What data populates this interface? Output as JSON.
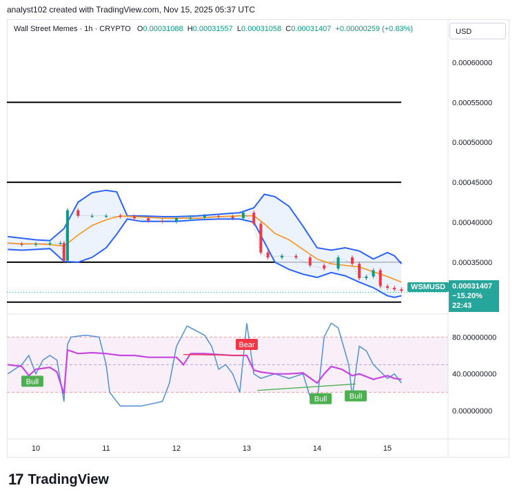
{
  "caption": "analyst102 created with TradingView.com, Nov 15, 2025 05:37 UTC",
  "header": {
    "symbol": "Wall Street Memes · 1h · CRYPTO",
    "open_label": "O",
    "open": "0.00031088",
    "high_label": "H",
    "high": "0.00031557",
    "low_label": "L",
    "low": "0.00031058",
    "close_label": "C",
    "close": "0.00031407",
    "change": "+0.00000259 (+0.83%)"
  },
  "currency_button": "USD",
  "last_price": {
    "symbol_tag": "WSMUSD",
    "price": "0.00031407",
    "change_pct": "−15.20%",
    "countdown": "22:43"
  },
  "brand": {
    "icon": "17",
    "name": "TradingView"
  },
  "colors": {
    "up": "#089981",
    "down": "#f23645",
    "band": "#2962ff",
    "band_fill": "#e8f0fb",
    "basis": "#f7931a",
    "rsi": "#c545e0",
    "stoch": "#4f8fd6",
    "bull": "#4caf50",
    "bear": "#f23645"
  },
  "chart_data": [
    {
      "type": "line",
      "description_series": "price with Bollinger Bands",
      "x_axis_ticks": [
        "10",
        "11",
        "12",
        "13",
        "14",
        "15"
      ],
      "y_axis_ticks": [
        "0.00060000",
        "0.00055000",
        "0.00050000",
        "0.00045000",
        "0.00040000",
        "0.00035000"
      ],
      "ylim": [
        0.000305,
        0.000615
      ],
      "horizontal_levels": [
        0.00055,
        0.00045,
        0.00035,
        0.0003
      ],
      "series": [
        {
          "key": "price",
          "x": [
            9.6,
            9.8,
            10.0,
            10.2,
            10.35,
            10.4,
            10.45,
            10.6,
            10.8,
            11.0,
            11.2,
            11.4,
            11.6,
            11.8,
            12.0,
            12.2,
            12.4,
            12.6,
            12.8,
            12.95,
            13.1,
            13.2,
            13.3,
            13.5,
            13.7,
            13.9,
            14.1,
            14.3,
            14.5,
            14.6,
            14.7,
            14.8,
            14.9,
            15.0,
            15.1,
            15.2
          ],
          "y": [
            0.000373,
            0.000372,
            0.000373,
            0.000374,
            0.000374,
            0.000352,
            0.000415,
            0.000408,
            0.000408,
            0.000408,
            0.000407,
            0.000405,
            0.000402,
            0.000401,
            0.000405,
            0.000406,
            0.000408,
            0.000407,
            0.000405,
            0.000412,
            0.000398,
            0.000362,
            0.000356,
            0.000358,
            0.000356,
            0.000346,
            0.000342,
            0.000356,
            0.000348,
            0.00033,
            0.000332,
            0.00034,
            0.00032,
            0.000318,
            0.000316,
            0.000314
          ]
        },
        {
          "key": "upper_band",
          "x": [
            9.6,
            9.8,
            10.0,
            10.2,
            10.4,
            10.6,
            10.8,
            11.0,
            11.15,
            11.3,
            11.5,
            11.8,
            12.0,
            12.3,
            12.6,
            12.9,
            13.1,
            13.25,
            13.4,
            13.6,
            13.8,
            14.0,
            14.2,
            14.4,
            14.6,
            14.8,
            15.0,
            15.1,
            15.2
          ],
          "y": [
            0.000382,
            0.00038,
            0.000378,
            0.000377,
            0.000392,
            0.000425,
            0.000437,
            0.00044,
            0.000438,
            0.000408,
            0.000408,
            0.000407,
            0.000407,
            0.000408,
            0.00041,
            0.000412,
            0.000418,
            0.000435,
            0.000432,
            0.00042,
            0.000395,
            0.000368,
            0.000365,
            0.000368,
            0.000364,
            0.000354,
            0.000362,
            0.000358,
            0.000348
          ]
        },
        {
          "key": "lower_band",
          "x": [
            9.6,
            9.8,
            10.0,
            10.2,
            10.4,
            10.6,
            10.8,
            11.0,
            11.15,
            11.3,
            11.5,
            11.8,
            12.0,
            12.3,
            12.6,
            12.9,
            13.1,
            13.25,
            13.4,
            13.6,
            13.8,
            14.0,
            14.2,
            14.4,
            14.6,
            14.8,
            15.0,
            15.1,
            15.2
          ],
          "y": [
            0.000366,
            0.000365,
            0.000366,
            0.000367,
            0.000351,
            0.00035,
            0.000356,
            0.000368,
            0.000385,
            0.000404,
            0.000401,
            0.000401,
            0.000401,
            0.000403,
            0.000404,
            0.000404,
            0.0004,
            0.000375,
            0.00035,
            0.000341,
            0.000335,
            0.000331,
            0.000337,
            0.000333,
            0.000325,
            0.000318,
            0.000308,
            0.000306,
            0.000308
          ]
        },
        {
          "key": "basis",
          "x": [
            9.6,
            9.8,
            10.0,
            10.2,
            10.4,
            10.6,
            10.8,
            11.0,
            11.2,
            11.4,
            11.6,
            11.8,
            12.0,
            12.3,
            12.6,
            12.9,
            13.1,
            13.25,
            13.4,
            13.6,
            13.8,
            14.0,
            14.2,
            14.4,
            14.6,
            14.8,
            15.0,
            15.2
          ],
          "y": [
            0.000374,
            0.000373,
            0.000373,
            0.000372,
            0.00037,
            0.000384,
            0.000396,
            0.000403,
            0.000408,
            0.000407,
            0.000406,
            0.000405,
            0.000405,
            0.000405,
            0.000407,
            0.000408,
            0.000408,
            0.000398,
            0.000386,
            0.000378,
            0.000366,
            0.000354,
            0.000348,
            0.000346,
            0.000344,
            0.000338,
            0.000332,
            0.000325
          ]
        }
      ]
    },
    {
      "type": "line",
      "description_series": "RSI and stochastic oscillator",
      "y_axis_ticks": [
        "80.00000000",
        "40.00000000",
        "0.00000000"
      ],
      "ylim": [
        -30,
        105
      ],
      "bands": [
        80,
        50,
        20
      ],
      "labels": [
        {
          "text": "Bull",
          "x": 9.95,
          "value": 32
        },
        {
          "text": "Bear",
          "x": 13.0,
          "value": 72
        },
        {
          "text": "Bull",
          "x": 14.05,
          "value": 13
        },
        {
          "text": "Bull",
          "x": 14.55,
          "value": 16
        }
      ],
      "series": [
        {
          "key": "rsi",
          "x": [
            9.6,
            9.8,
            9.9,
            10.0,
            10.2,
            10.3,
            10.4,
            10.45,
            10.6,
            10.8,
            11.0,
            11.2,
            11.4,
            11.6,
            11.8,
            12.0,
            12.1,
            12.2,
            12.4,
            12.6,
            12.8,
            13.0,
            13.1,
            13.2,
            13.4,
            13.6,
            13.8,
            14.0,
            14.1,
            14.2,
            14.35,
            14.5,
            14.6,
            14.8,
            15.0,
            15.1,
            15.2
          ],
          "y": [
            50,
            48,
            38,
            45,
            47,
            42,
            18,
            66,
            62,
            63,
            62,
            60,
            60,
            58,
            58,
            58,
            50,
            62,
            62,
            61,
            60,
            60,
            44,
            42,
            40,
            40,
            41,
            30,
            40,
            48,
            45,
            38,
            40,
            34,
            38,
            35,
            34
          ]
        },
        {
          "key": "stoch",
          "x": [
            9.6,
            9.7,
            9.8,
            9.9,
            10.0,
            10.1,
            10.2,
            10.3,
            10.4,
            10.45,
            10.5,
            10.7,
            10.9,
            11.0,
            11.05,
            11.2,
            11.5,
            11.8,
            11.9,
            12.0,
            12.15,
            12.25,
            12.4,
            12.5,
            12.6,
            12.7,
            12.8,
            12.9,
            13.0,
            13.1,
            13.2,
            13.4,
            13.6,
            13.8,
            13.9,
            14.0,
            14.1,
            14.2,
            14.3,
            14.45,
            14.5,
            14.6,
            14.7,
            14.8,
            15.0,
            15.1,
            15.2
          ],
          "y": [
            40,
            45,
            50,
            60,
            40,
            55,
            60,
            55,
            10,
            72,
            80,
            82,
            80,
            50,
            20,
            5,
            5,
            10,
            30,
            70,
            92,
            88,
            82,
            70,
            45,
            50,
            40,
            20,
            95,
            40,
            35,
            40,
            35,
            40,
            15,
            10,
            80,
            95,
            90,
            50,
            15,
            70,
            65,
            50,
            35,
            40,
            30
          ]
        }
      ]
    }
  ]
}
